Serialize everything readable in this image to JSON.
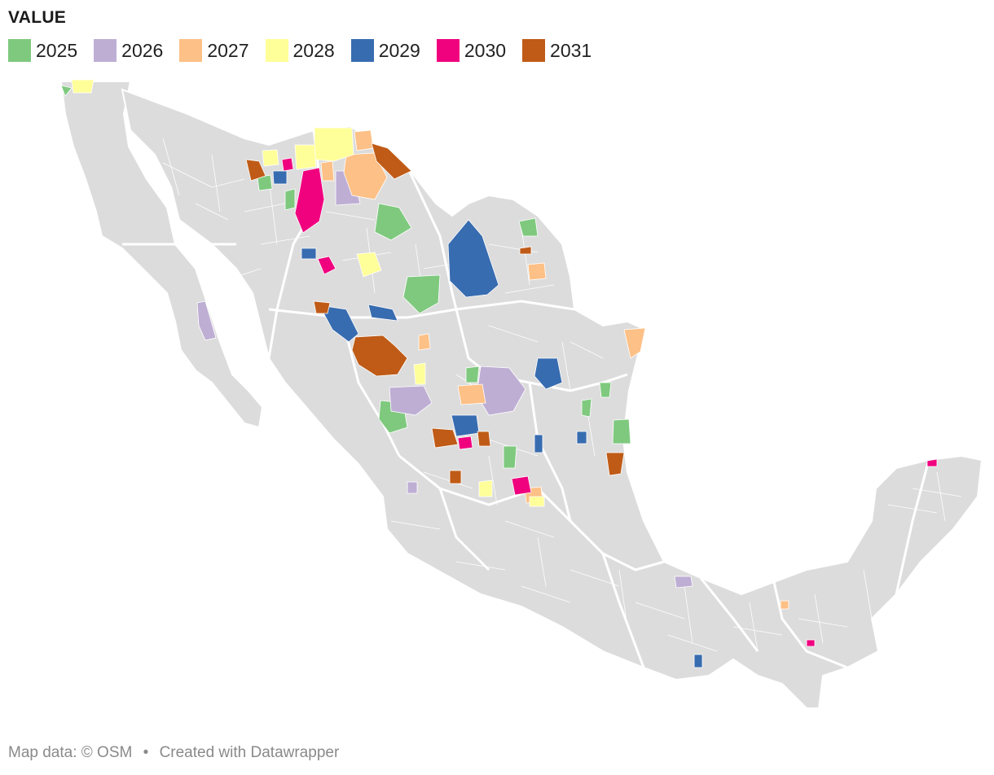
{
  "legend": {
    "title": "VALUE",
    "items": [
      {
        "label": "2025",
        "color": "#7fc97f"
      },
      {
        "label": "2026",
        "color": "#beaed4"
      },
      {
        "label": "2027",
        "color": "#fdc086"
      },
      {
        "label": "2028",
        "color": "#ffff99"
      },
      {
        "label": "2029",
        "color": "#386cb0"
      },
      {
        "label": "2030",
        "color": "#f0027f"
      },
      {
        "label": "2031",
        "color": "#bf5b17"
      }
    ]
  },
  "map": {
    "country": "Mexico",
    "base_color": "#dcdcdc",
    "border_color": "#ffffff"
  },
  "footer": {
    "attribution": "Map data: © OSM",
    "separator": "•",
    "credit": "Created with Datawrapper"
  }
}
